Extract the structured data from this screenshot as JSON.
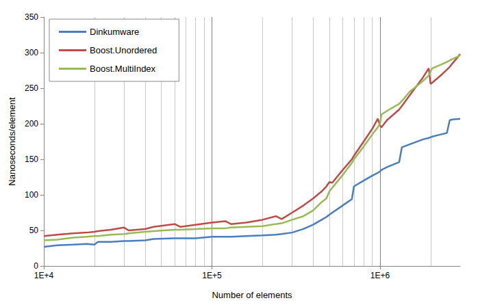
{
  "chart_data": {
    "type": "line",
    "x_label": "Number of elements",
    "y_label": "Nanoseconds/element",
    "log": "x",
    "grid": true,
    "legend": "top-left",
    "xlim": [
      10000,
      3000000
    ],
    "xticks": [
      {
        "value": 10000,
        "label": "1E+4"
      },
      {
        "value": 100000,
        "label": "1E+5"
      },
      {
        "value": 1000000,
        "label": "1E+6"
      }
    ],
    "ylim": [
      0,
      350
    ],
    "yticks": [
      0,
      50,
      100,
      150,
      200,
      250,
      300,
      350
    ],
    "x": [
      10000,
      12000,
      15000,
      18000,
      20000,
      21000,
      25000,
      30000,
      32000,
      40000,
      45000,
      60000,
      65000,
      80000,
      100000,
      120000,
      130000,
      160000,
      200000,
      240000,
      260000,
      300000,
      350000,
      400000,
      450000,
      480000,
      500000,
      520000,
      600000,
      680000,
      700000,
      800000,
      900000,
      970000,
      1000000,
      1020000,
      1100000,
      1300000,
      1350000,
      1500000,
      1800000,
      1950000,
      2000000,
      2050000,
      2300000,
      2500000,
      2600000,
      2700000,
      3000000
    ],
    "series": [
      {
        "name": "Dinkumware",
        "color": "#4a7ebb",
        "values": [
          27,
          29,
          30,
          31,
          30,
          34,
          34,
          35,
          35,
          36,
          38,
          39,
          39,
          39,
          41,
          41,
          41,
          42,
          43,
          44,
          45,
          47,
          52,
          58,
          65,
          69,
          72,
          75,
          85,
          94,
          112,
          120,
          127,
          131,
          133,
          135,
          139,
          146,
          167,
          171,
          178,
          180,
          181,
          182,
          185,
          187,
          205,
          206,
          207
        ]
      },
      {
        "name": "Boost.Unordered",
        "color": "#be4b48",
        "values": [
          42,
          44,
          46,
          47,
          48,
          49,
          51,
          54,
          50,
          52,
          55,
          59,
          55,
          58,
          61,
          63,
          59,
          61,
          65,
          70,
          66,
          75,
          85,
          95,
          105,
          112,
          118,
          117,
          135,
          150,
          155,
          175,
          193,
          207,
          198,
          195,
          205,
          220,
          225,
          240,
          265,
          278,
          256,
          258,
          268,
          276,
          280,
          285,
          298
        ]
      },
      {
        "name": "Boost.MultiIndex",
        "color": "#98b954",
        "values": [
          36,
          37,
          40,
          41,
          42,
          42,
          44,
          45,
          46,
          48,
          49,
          51,
          51,
          52,
          53,
          53,
          54,
          55,
          56,
          59,
          60,
          65,
          70,
          78,
          90,
          95,
          105,
          110,
          128,
          145,
          150,
          168,
          185,
          195,
          200,
          213,
          218,
          228,
          232,
          245,
          260,
          268,
          274,
          278,
          283,
          287,
          289,
          291,
          296
        ]
      }
    ]
  }
}
